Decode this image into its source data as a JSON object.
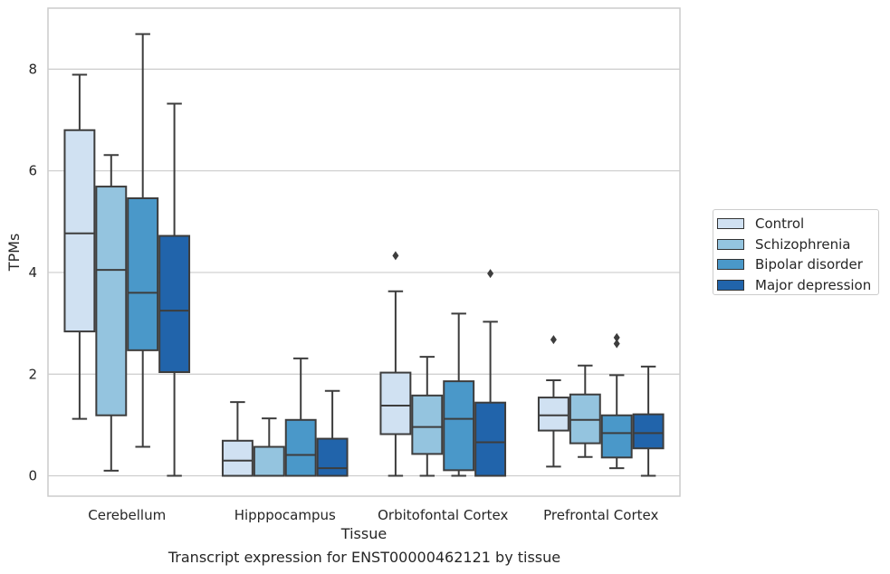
{
  "chart_data": {
    "type": "box",
    "caption": "Transcript expression for ENST00000462121 by tissue",
    "xlabel": "Tissue",
    "ylabel": "TPMs",
    "ylim": [
      -0.4,
      9.2
    ],
    "yticks": [
      "0",
      "2",
      "4",
      "6",
      "8"
    ],
    "ytick_values": [
      0,
      2,
      4,
      6,
      8
    ],
    "grid": "horizontal",
    "legend_position": "right",
    "categories": [
      "Cerebellum",
      "Hipppocampus",
      "Orbitofontal Cortex",
      "Prefrontal Cortex"
    ],
    "series": [
      {
        "name": "Control",
        "color": "#d0e1f2",
        "boxes": [
          {
            "min": 1.12,
            "q1": 2.84,
            "median": 4.77,
            "q3": 6.8,
            "max": 7.89,
            "outliers": []
          },
          {
            "min": 0.0,
            "q1": 0.0,
            "median": 0.3,
            "q3": 0.69,
            "max": 1.45,
            "outliers": []
          },
          {
            "min": 0.0,
            "q1": 0.82,
            "median": 1.38,
            "q3": 2.03,
            "max": 3.63,
            "outliers": [
              4.33
            ]
          },
          {
            "min": 0.18,
            "q1": 0.89,
            "median": 1.19,
            "q3": 1.54,
            "max": 1.88,
            "outliers": [
              2.68
            ]
          }
        ]
      },
      {
        "name": "Schizophrenia",
        "color": "#94c4df",
        "boxes": [
          {
            "min": 0.1,
            "q1": 1.19,
            "median": 4.05,
            "q3": 5.69,
            "max": 6.31,
            "outliers": []
          },
          {
            "min": 0.0,
            "q1": 0.0,
            "median": 0.0,
            "q3": 0.57,
            "max": 1.13,
            "outliers": []
          },
          {
            "min": 0.0,
            "q1": 0.43,
            "median": 0.96,
            "q3": 1.58,
            "max": 2.34,
            "outliers": []
          },
          {
            "min": 0.37,
            "q1": 0.64,
            "median": 1.1,
            "q3": 1.6,
            "max": 2.17,
            "outliers": []
          }
        ]
      },
      {
        "name": "Bipolar disorder",
        "color": "#4a98c9",
        "boxes": [
          {
            "min": 0.57,
            "q1": 2.47,
            "median": 3.6,
            "q3": 5.46,
            "max": 8.69,
            "outliers": []
          },
          {
            "min": 0.0,
            "q1": 0.0,
            "median": 0.41,
            "q3": 1.1,
            "max": 2.31,
            "outliers": []
          },
          {
            "min": 0.0,
            "q1": 0.11,
            "median": 1.12,
            "q3": 1.86,
            "max": 3.19,
            "outliers": []
          },
          {
            "min": 0.15,
            "q1": 0.36,
            "median": 0.84,
            "q3": 1.19,
            "max": 1.98,
            "outliers": [
              2.6,
              2.72
            ]
          }
        ]
      },
      {
        "name": "Major depression",
        "color": "#2164ab",
        "boxes": [
          {
            "min": 0.0,
            "q1": 2.04,
            "median": 3.25,
            "q3": 4.72,
            "max": 7.32,
            "outliers": []
          },
          {
            "min": 0.0,
            "q1": 0.0,
            "median": 0.15,
            "q3": 0.73,
            "max": 1.67,
            "outliers": []
          },
          {
            "min": 0.0,
            "q1": 0.0,
            "median": 0.66,
            "q3": 1.44,
            "max": 3.03,
            "outliers": [
              3.98
            ]
          },
          {
            "min": 0.0,
            "q1": 0.54,
            "median": 0.84,
            "q3": 1.21,
            "max": 2.15,
            "outliers": []
          }
        ]
      }
    ]
  }
}
